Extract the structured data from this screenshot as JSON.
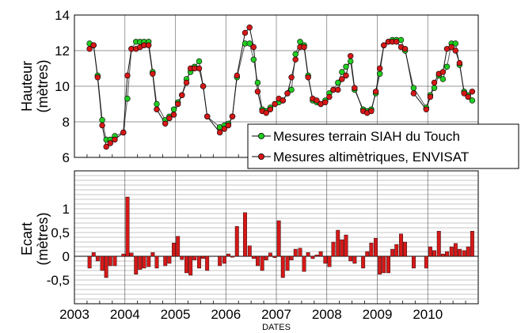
{
  "chart_data": [
    {
      "type": "line",
      "ylabel_lines": [
        "Hauteur",
        "(mètres)"
      ],
      "ylim": [
        6,
        14
      ],
      "yticks": [
        6,
        8,
        10,
        12,
        14
      ],
      "xlim": [
        2003,
        2011
      ],
      "grid": true,
      "legend_position": "bottom-right",
      "series": [
        {
          "name": "Mesures terrain SIAH du Touch",
          "color": "#22cc22",
          "x": [
            2003.3,
            2003.38,
            2003.46,
            2003.55,
            2003.63,
            2003.71,
            2003.8,
            2003.97,
            2004.05,
            2004.13,
            2004.22,
            2004.3,
            2004.38,
            2004.47,
            2004.55,
            2004.63,
            2004.8,
            2004.88,
            2004.97,
            2005.05,
            2005.13,
            2005.22,
            2005.3,
            2005.38,
            2005.47,
            2005.55,
            2005.63,
            2005.88,
            2005.97,
            2006.05,
            2006.13,
            2006.22,
            2006.38,
            2006.47,
            2006.55,
            2006.63,
            2006.72,
            2006.8,
            2006.88,
            2006.97,
            2007.05,
            2007.13,
            2007.22,
            2007.3,
            2007.38,
            2007.47,
            2007.55,
            2007.63,
            2007.72,
            2007.8,
            2007.88,
            2007.97,
            2008.05,
            2008.13,
            2008.22,
            2008.3,
            2008.38,
            2008.47,
            2008.55,
            2008.72,
            2008.8,
            2008.88,
            2008.97,
            2009.05,
            2009.13,
            2009.22,
            2009.3,
            2009.38,
            2009.47,
            2009.55,
            2009.72,
            2009.97,
            2010.05,
            2010.13,
            2010.22,
            2010.3,
            2010.38,
            2010.47,
            2010.55,
            2010.63,
            2010.72,
            2010.8,
            2010.88
          ],
          "y": [
            12.4,
            12.3,
            10.6,
            8.1,
            7.0,
            7.0,
            7.2,
            7.4,
            9.3,
            12.1,
            12.5,
            12.5,
            12.5,
            12.5,
            10.8,
            9.0,
            8.1,
            8.3,
            8.7,
            9.1,
            9.5,
            10.4,
            10.8,
            11.1,
            11.4,
            10.0,
            8.3,
            7.7,
            7.8,
            7.9,
            8.3,
            10.5,
            12.4,
            12.4,
            11.5,
            10.2,
            8.7,
            8.6,
            8.8,
            9.0,
            9.1,
            9.2,
            9.6,
            9.8,
            11.8,
            12.5,
            12.3,
            10.6,
            9.2,
            9.1,
            9.0,
            9.2,
            9.6,
            9.8,
            10.2,
            10.8,
            11.1,
            11.4,
            9.8,
            8.7,
            8.6,
            8.7,
            9.6,
            10.7,
            12.3,
            12.5,
            12.6,
            12.6,
            12.6,
            12.0,
            9.9,
            8.8,
            9.5,
            9.9,
            10.6,
            10.4,
            11.1,
            12.4,
            12.4,
            11.2,
            9.7,
            9.5,
            9.2
          ]
        },
        {
          "name": "Mesures altimètriques, ENVISAT",
          "color": "#d61818",
          "x": [
            2003.3,
            2003.38,
            2003.46,
            2003.55,
            2003.63,
            2003.71,
            2003.8,
            2003.97,
            2004.05,
            2004.13,
            2004.22,
            2004.3,
            2004.38,
            2004.47,
            2004.55,
            2004.63,
            2004.8,
            2004.88,
            2004.97,
            2005.05,
            2005.13,
            2005.22,
            2005.3,
            2005.38,
            2005.47,
            2005.55,
            2005.63,
            2005.88,
            2005.97,
            2006.05,
            2006.13,
            2006.22,
            2006.38,
            2006.47,
            2006.55,
            2006.63,
            2006.72,
            2006.8,
            2006.88,
            2006.97,
            2007.05,
            2007.13,
            2007.22,
            2007.3,
            2007.38,
            2007.47,
            2007.55,
            2007.63,
            2007.72,
            2007.8,
            2007.88,
            2007.97,
            2008.05,
            2008.13,
            2008.22,
            2008.3,
            2008.38,
            2008.47,
            2008.55,
            2008.72,
            2008.8,
            2008.88,
            2008.97,
            2009.05,
            2009.13,
            2009.22,
            2009.3,
            2009.38,
            2009.47,
            2009.55,
            2009.72,
            2009.97,
            2010.05,
            2010.13,
            2010.22,
            2010.3,
            2010.38,
            2010.47,
            2010.55,
            2010.63,
            2010.72,
            2010.8,
            2010.88
          ],
          "y": [
            12.1,
            12.3,
            10.5,
            7.8,
            6.6,
            6.8,
            7.0,
            7.4,
            10.6,
            12.1,
            12.1,
            12.2,
            12.3,
            12.3,
            10.7,
            8.7,
            7.9,
            8.2,
            8.4,
            9.0,
            9.5,
            10.2,
            11.0,
            11.0,
            11.0,
            10.0,
            8.3,
            7.4,
            7.6,
            7.8,
            8.3,
            10.6,
            13.0,
            13.3,
            12.2,
            9.7,
            8.6,
            8.5,
            8.7,
            9.0,
            9.3,
            9.2,
            9.6,
            10.5,
            11.5,
            12.2,
            12.2,
            10.5,
            9.3,
            9.2,
            9.0,
            9.1,
            9.4,
            9.8,
            9.8,
            10.4,
            10.6,
            11.7,
            9.9,
            8.6,
            8.5,
            8.6,
            9.7,
            11.0,
            12.3,
            12.5,
            12.5,
            12.5,
            12.2,
            12.1,
            9.6,
            8.7,
            9.4,
            10.2,
            10.7,
            10.8,
            12.1,
            12.2,
            12.0,
            11.3,
            9.6,
            9.4,
            9.7
          ]
        }
      ]
    },
    {
      "type": "bar",
      "ylabel_lines": [
        "Ecart",
        "(mètres)"
      ],
      "xlabel": "DATES",
      "ylim": [
        -1,
        1.8
      ],
      "yticks": [
        1,
        0.5,
        0,
        -0.5
      ],
      "ytick_labels": [
        "1",
        "0,5",
        "0",
        "-0,5"
      ],
      "xlim": [
        2003,
        2011
      ],
      "xticks": [
        2003,
        2004,
        2005,
        2006,
        2007,
        2008,
        2009,
        2010
      ],
      "xtick_labels": [
        "2003",
        "2004",
        "2005",
        "2006",
        "2007",
        "2008",
        "2009",
        "2010"
      ],
      "grid": true,
      "bar_color": "#d61818",
      "x": [
        2003.3,
        2003.38,
        2003.46,
        2003.55,
        2003.63,
        2003.71,
        2003.8,
        2003.97,
        2004.05,
        2004.13,
        2004.22,
        2004.3,
        2004.38,
        2004.47,
        2004.55,
        2004.63,
        2004.8,
        2004.88,
        2004.97,
        2005.05,
        2005.13,
        2005.22,
        2005.3,
        2005.38,
        2005.47,
        2005.55,
        2005.63,
        2005.88,
        2005.97,
        2006.05,
        2006.13,
        2006.22,
        2006.38,
        2006.47,
        2006.55,
        2006.63,
        2006.72,
        2006.8,
        2006.88,
        2006.97,
        2007.05,
        2007.13,
        2007.22,
        2007.3,
        2007.38,
        2007.47,
        2007.55,
        2007.63,
        2007.72,
        2007.8,
        2007.88,
        2007.97,
        2008.05,
        2008.13,
        2008.22,
        2008.3,
        2008.38,
        2008.47,
        2008.55,
        2008.72,
        2008.8,
        2008.88,
        2008.97,
        2009.05,
        2009.13,
        2009.22,
        2009.3,
        2009.38,
        2009.47,
        2009.55,
        2009.72,
        2009.97,
        2010.05,
        2010.13,
        2010.22,
        2010.3,
        2010.38,
        2010.47,
        2010.55,
        2010.63,
        2010.72,
        2010.8,
        2010.88
      ],
      "values": [
        -0.25,
        0.08,
        -0.1,
        -0.3,
        -0.45,
        -0.2,
        -0.2,
        0.05,
        1.25,
        0.07,
        -0.38,
        -0.28,
        -0.25,
        -0.22,
        0.08,
        -0.25,
        -0.2,
        -0.15,
        0.28,
        0.42,
        -0.07,
        -0.35,
        -0.4,
        -0.08,
        -0.25,
        -0.05,
        -0.3,
        -0.2,
        -0.15,
        0.05,
        -0.02,
        0.63,
        0.92,
        0.22,
        -0.05,
        -0.2,
        -0.3,
        -0.08,
        0.07,
        -0.03,
        0.75,
        -0.45,
        -0.3,
        -0.08,
        0.15,
        0.17,
        -0.32,
        0.08,
        -0.05,
        0.03,
        0.1,
        -0.15,
        -0.22,
        0.3,
        0.55,
        0.35,
        0.45,
        -0.1,
        -0.15,
        -0.25,
        0.1,
        0.28,
        0.38,
        -0.38,
        -0.35,
        -0.35,
        0.15,
        0.25,
        0.47,
        0.3,
        -0.25,
        -0.25,
        0.2,
        0.12,
        0.53,
        0.05,
        0.1,
        0.2,
        0.27,
        0.15,
        0.12,
        0.2,
        0.53
      ]
    }
  ]
}
